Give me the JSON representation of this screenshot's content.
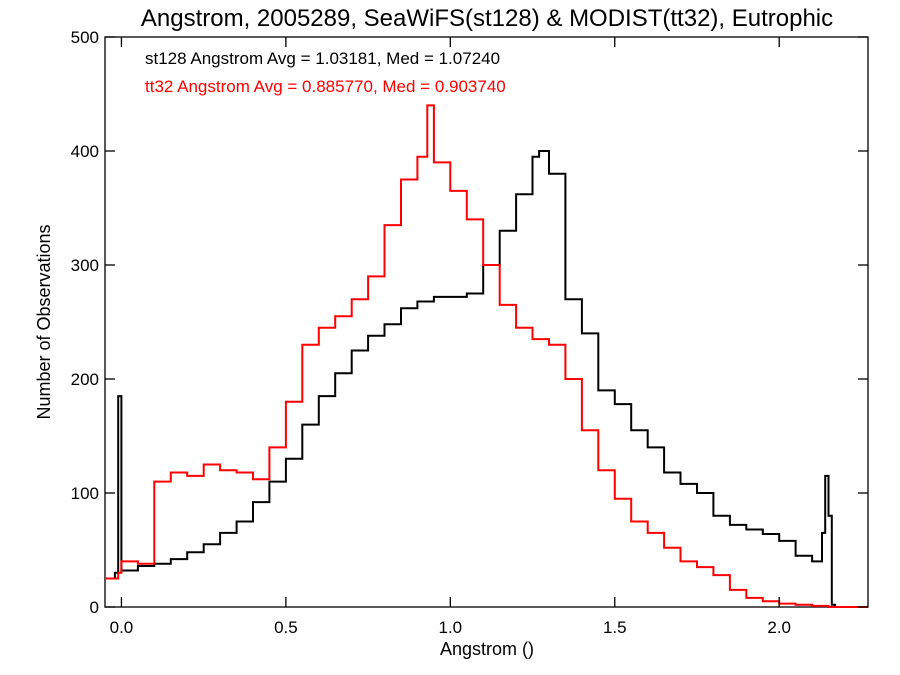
{
  "chart_data": {
    "type": "line",
    "title": "Angstrom, 2005289, SeaWiFS(st128) & MODIST(tt32), Eutrophic",
    "xlabel": "Angstrom ()",
    "ylabel": "Number of Observations",
    "xlim": [
      -0.05,
      2.27
    ],
    "ylim": [
      0,
      500
    ],
    "xticks": [
      "0.0",
      "0.5",
      "1.0",
      "1.5",
      "2.0"
    ],
    "yticks": [
      "0",
      "100",
      "200",
      "300",
      "400",
      "500"
    ],
    "grid": false,
    "annotations": [
      {
        "text": "st128 Angstrom Avg = 1.03181, Med = 1.07240",
        "color": "#000000"
      },
      {
        "text": "tt32 Angstrom Avg = 0.885770, Med = 0.903740",
        "color": "#ff0000"
      }
    ],
    "series": [
      {
        "color": "#000000",
        "x": [
          -0.05,
          -0.02,
          -0.01,
          0.0,
          0.05,
          0.1,
          0.15,
          0.2,
          0.25,
          0.3,
          0.35,
          0.4,
          0.45,
          0.5,
          0.55,
          0.6,
          0.65,
          0.7,
          0.75,
          0.8,
          0.85,
          0.9,
          0.95,
          1.0,
          1.05,
          1.1,
          1.15,
          1.2,
          1.25,
          1.27,
          1.3,
          1.35,
          1.4,
          1.45,
          1.5,
          1.55,
          1.6,
          1.65,
          1.7,
          1.75,
          1.8,
          1.85,
          1.9,
          1.95,
          2.0,
          2.05,
          2.1,
          2.13,
          2.14,
          2.15,
          2.16,
          2.17,
          2.27
        ],
        "values": [
          25,
          30,
          185,
          32,
          36,
          38,
          42,
          48,
          55,
          65,
          75,
          92,
          110,
          130,
          160,
          185,
          205,
          225,
          238,
          248,
          262,
          268,
          272,
          272,
          275,
          300,
          330,
          362,
          395,
          400,
          380,
          270,
          240,
          190,
          178,
          155,
          140,
          118,
          108,
          100,
          80,
          72,
          68,
          64,
          58,
          45,
          40,
          65,
          115,
          80,
          2,
          0,
          0
        ]
      },
      {
        "color": "#ff0000",
        "x": [
          -0.05,
          -0.01,
          0.0,
          0.05,
          0.1,
          0.15,
          0.2,
          0.25,
          0.3,
          0.35,
          0.4,
          0.45,
          0.5,
          0.55,
          0.6,
          0.65,
          0.7,
          0.75,
          0.8,
          0.85,
          0.9,
          0.93,
          0.95,
          1.0,
          1.05,
          1.1,
          1.15,
          1.2,
          1.25,
          1.3,
          1.35,
          1.4,
          1.45,
          1.5,
          1.55,
          1.6,
          1.65,
          1.7,
          1.75,
          1.8,
          1.85,
          1.9,
          1.95,
          2.0,
          2.05,
          2.1,
          2.15,
          2.27
        ],
        "values": [
          25,
          30,
          40,
          38,
          110,
          118,
          115,
          125,
          120,
          118,
          112,
          140,
          180,
          230,
          245,
          255,
          270,
          290,
          335,
          375,
          395,
          440,
          390,
          365,
          340,
          300,
          265,
          245,
          235,
          230,
          200,
          155,
          120,
          95,
          75,
          65,
          52,
          40,
          35,
          28,
          15,
          8,
          5,
          3,
          2,
          1,
          0,
          0
        ]
      }
    ]
  }
}
